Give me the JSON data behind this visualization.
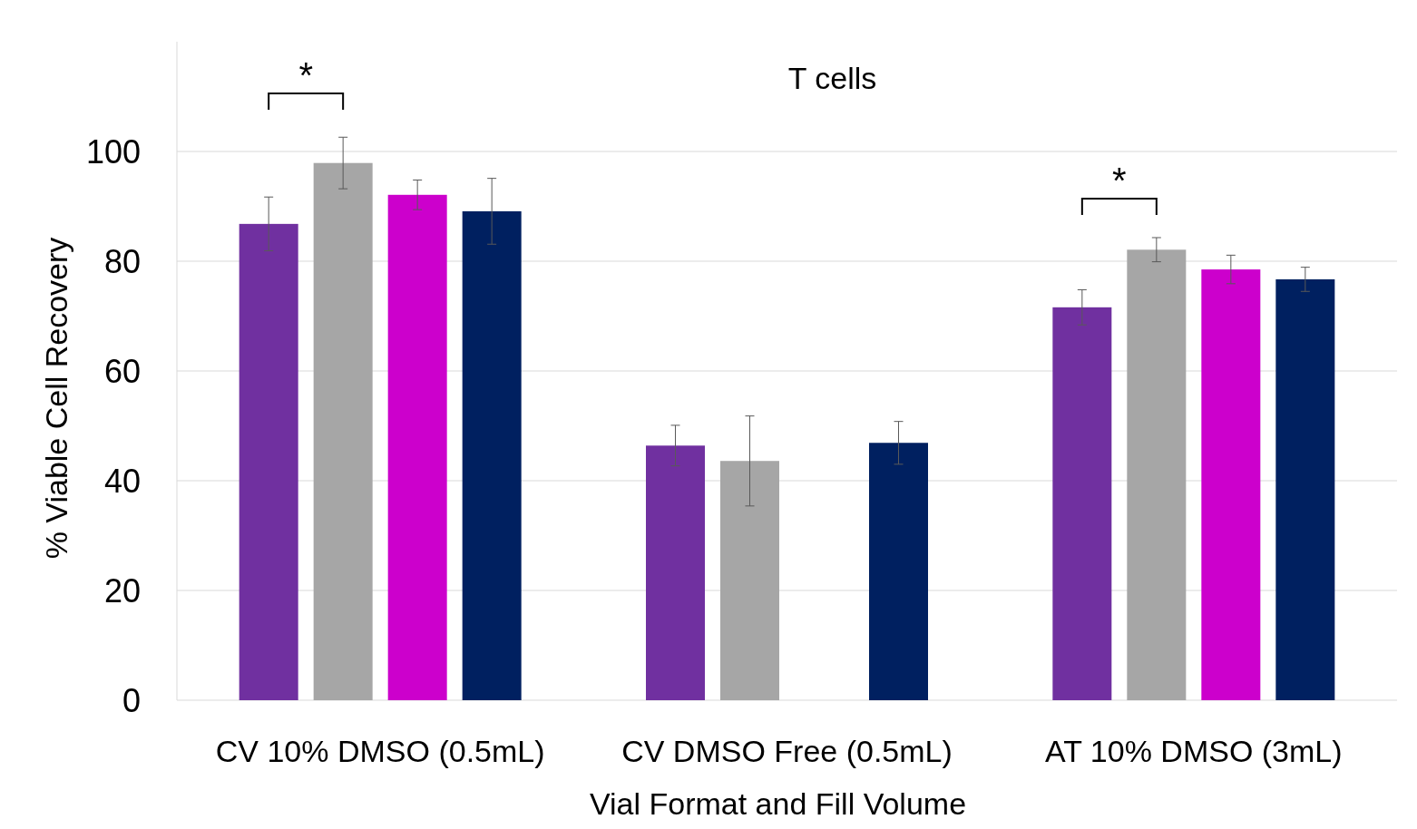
{
  "chart_data": {
    "type": "bar",
    "title": "T cells",
    "xlabel": "Vial Format and Fill Volume",
    "ylabel": "% Viable Cell Recovery",
    "categories": [
      "CV 10% DMSO (0.5mL)",
      "CV DMSO Free (0.5mL)",
      "AT 10% DMSO (3mL)"
    ],
    "series": [
      {
        "color": "#7030a0",
        "values": [
          86.8,
          46.4,
          71.6
        ],
        "errors": [
          4.9,
          3.7,
          3.2
        ]
      },
      {
        "color": "#a6a6a6",
        "values": [
          97.9,
          43.6,
          82.1
        ],
        "errors": [
          4.7,
          8.2,
          2.2
        ]
      },
      {
        "color": "#cc00cc",
        "values": [
          92.1,
          null,
          78.5
        ],
        "errors": [
          2.7,
          null,
          2.6
        ]
      },
      {
        "color": "#002060",
        "values": [
          89.1,
          46.9,
          76.7
        ],
        "errors": [
          6.0,
          3.9,
          2.2
        ]
      }
    ],
    "ylim": [
      0,
      120
    ],
    "yticks": [
      0,
      20,
      40,
      60,
      80,
      100
    ],
    "grid": "y",
    "annotations": [
      "*",
      "*"
    ]
  }
}
